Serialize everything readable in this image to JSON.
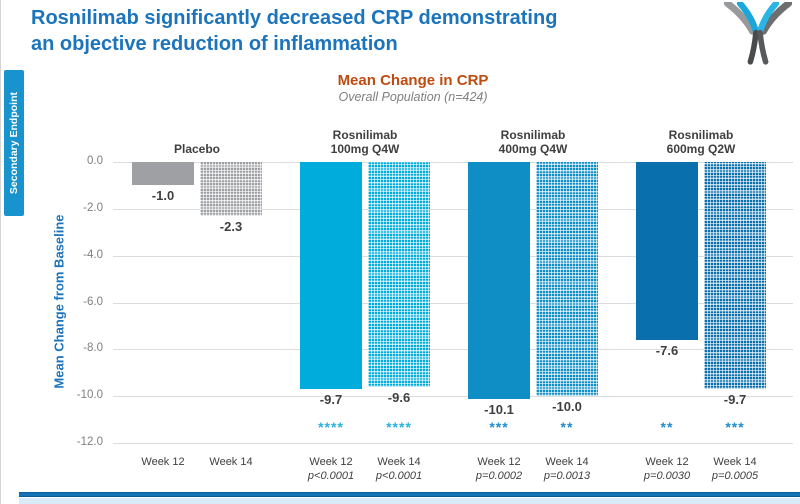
{
  "slide": {
    "title_line1": "Rosnilimab significantly decreased CRP demonstrating",
    "title_line2": "an objective reduction of inflammation",
    "side_tab_label": "Secondary Endpoint",
    "colors": {
      "title_blue": "#1B74BC",
      "tab_blue": "#1993CD",
      "footer_blue": "#1173B6",
      "chart_title_orange": "#BE4B0F"
    }
  },
  "chart_data": {
    "type": "bar",
    "title": "Mean Change in CRP",
    "subtitle": "Overall Population (n=424)",
    "ylabel": "Mean Change from Baseline",
    "ylim": [
      -12,
      0
    ],
    "ytick_labels": [
      "0.0",
      "-2.0",
      "-4.0",
      "-6.0",
      "-8.0",
      "-10.0",
      "-12.0"
    ],
    "grid": true,
    "legend_position": "none",
    "groups": [
      {
        "label_lines": [
          "Placebo"
        ],
        "color": "#9EA0A3",
        "star_color": "#9EA0A3",
        "bars": [
          {
            "week": "Week 12",
            "value": -1.0,
            "value_label": "-1.0",
            "pattern": false,
            "stars": "",
            "p": ""
          },
          {
            "week": "Week 14",
            "value": -2.3,
            "value_label": "-2.3",
            "pattern": true,
            "stars": "",
            "p": ""
          }
        ]
      },
      {
        "label_lines": [
          "Rosnilimab",
          "100mg Q4W"
        ],
        "color": "#00ACDC",
        "star_color": "#2AB1E3",
        "bars": [
          {
            "week": "Week 12",
            "value": -9.7,
            "value_label": "-9.7",
            "pattern": false,
            "stars": "****",
            "p": "p<0.0001"
          },
          {
            "week": "Week 14",
            "value": -9.6,
            "value_label": "-9.6",
            "pattern": true,
            "stars": "****",
            "p": "p<0.0001"
          }
        ]
      },
      {
        "label_lines": [
          "Rosnilimab",
          "400mg Q4W"
        ],
        "color": "#0E8EC5",
        "star_color": "#1F8DCB",
        "bars": [
          {
            "week": "Week 12",
            "value": -10.1,
            "value_label": "-10.1",
            "pattern": false,
            "stars": "***",
            "p": "p=0.0002"
          },
          {
            "week": "Week 14",
            "value": -10.0,
            "value_label": "-10.0",
            "pattern": true,
            "stars": "**",
            "p": "p=0.0013"
          }
        ]
      },
      {
        "label_lines": [
          "Rosnilimab",
          "600mg Q2W"
        ],
        "color": "#0A6FAD",
        "star_color": "#1F8DCB",
        "bars": [
          {
            "week": "Week 12",
            "value": -7.6,
            "value_label": "-7.6",
            "pattern": false,
            "stars": "**",
            "p": "p=0.0030"
          },
          {
            "week": "Week 14",
            "value": -9.7,
            "value_label": "-9.7",
            "pattern": true,
            "stars": "***",
            "p": "p=0.0005"
          }
        ]
      }
    ]
  }
}
